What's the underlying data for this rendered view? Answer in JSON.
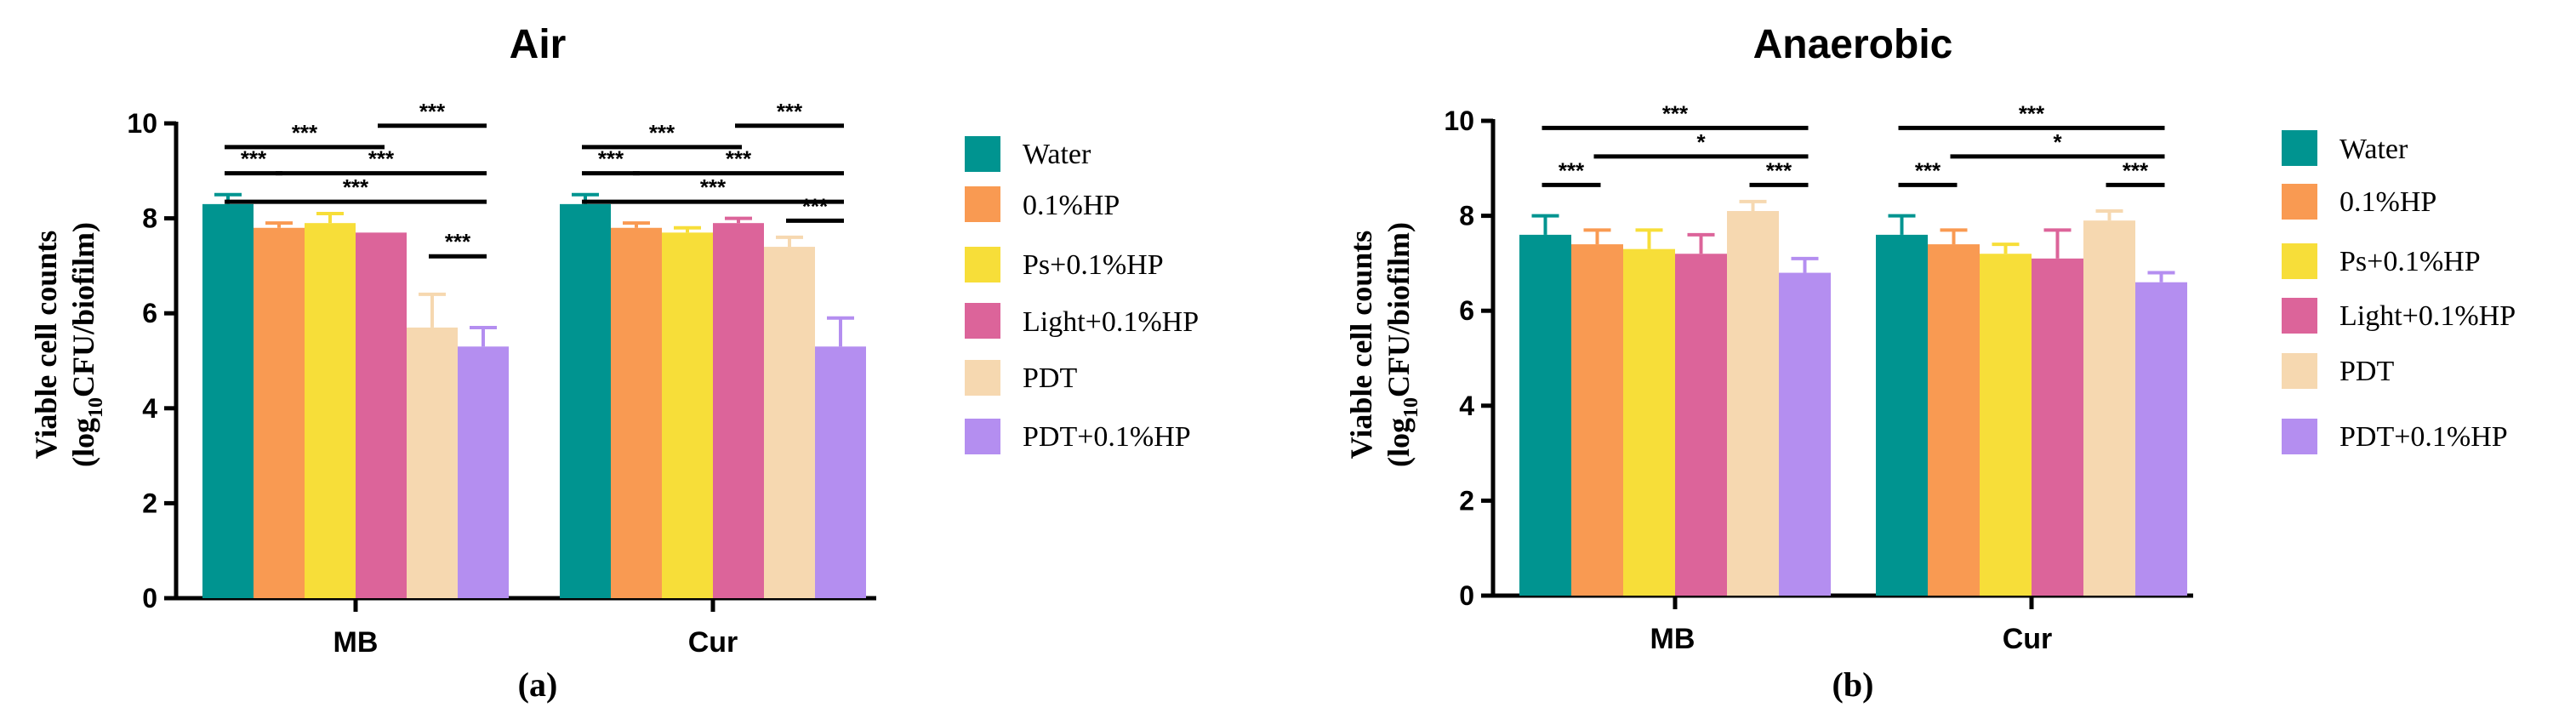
{
  "colors": {
    "Water": "#009490",
    "0.1%HP": "#f99a52",
    "Ps+0.1%HP": "#f7de39",
    "Light+0.1%HP": "#dc649a",
    "PDT": "#f6d8b0",
    "PDT+0.1%HP": "#b48ef0",
    "axis": "#000000"
  },
  "chart_data": [
    {
      "type": "bar",
      "title": "Air",
      "panel_label": "(a)",
      "ylabel_line1": "Viable cell counts",
      "ylabel_prefix": "(log",
      "ylabel_sub": "10",
      "ylabel_suffix": "CFU/biofilm)",
      "ylim": [
        0,
        10
      ],
      "yticks": [
        "0",
        "2",
        "4",
        "6",
        "8",
        "10"
      ],
      "categories": [
        "MB",
        "Cur"
      ],
      "series": [
        {
          "name": "Water",
          "values": [
            8.3,
            8.3
          ],
          "errors": [
            0.2,
            0.2
          ]
        },
        {
          "name": "0.1%HP",
          "values": [
            7.8,
            7.8
          ],
          "errors": [
            0.1,
            0.1
          ]
        },
        {
          "name": "Ps+0.1%HP",
          "values": [
            7.9,
            7.7
          ],
          "errors": [
            0.2,
            0.1
          ]
        },
        {
          "name": "Light+0.1%HP",
          "values": [
            7.7,
            7.9
          ],
          "errors": [
            0.0,
            0.1
          ]
        },
        {
          "name": "PDT",
          "values": [
            5.7,
            7.4
          ],
          "errors": [
            0.7,
            0.2
          ]
        },
        {
          "name": "PDT+0.1%HP",
          "values": [
            5.3,
            5.3
          ],
          "errors": [
            0.4,
            0.6
          ]
        }
      ],
      "significance": [
        {
          "category": 0,
          "from": 0,
          "to": 1,
          "label": "***",
          "level": 8.95
        },
        {
          "category": 0,
          "from": 0,
          "to": 3,
          "label": "***",
          "level": 9.5
        },
        {
          "category": 0,
          "from": 0,
          "to": 5,
          "label": "***",
          "level": 8.35
        },
        {
          "category": 0,
          "from": 1,
          "to": 5,
          "label": "***",
          "level": 8.95
        },
        {
          "category": 0,
          "from": 3,
          "to": 5,
          "label": "***",
          "level": 9.95
        },
        {
          "category": 0,
          "from": 4,
          "to": 5,
          "label": "***",
          "level": 7.2
        },
        {
          "category": 1,
          "from": 0,
          "to": 1,
          "label": "***",
          "level": 8.95
        },
        {
          "category": 1,
          "from": 0,
          "to": 3,
          "label": "***",
          "level": 9.5
        },
        {
          "category": 1,
          "from": 0,
          "to": 5,
          "label": "***",
          "level": 8.35
        },
        {
          "category": 1,
          "from": 1,
          "to": 5,
          "label": "***",
          "level": 8.95
        },
        {
          "category": 1,
          "from": 3,
          "to": 5,
          "label": "***",
          "level": 9.95
        },
        {
          "category": 1,
          "from": 4,
          "to": 5,
          "label": "***",
          "level": 7.95
        }
      ],
      "legend": [
        "Water",
        "0.1%HP",
        "Ps+0.1%HP",
        "Light+0.1%HP",
        "PDT",
        "PDT+0.1%HP"
      ]
    },
    {
      "type": "bar",
      "title": "Anaerobic",
      "panel_label": "(b)",
      "ylabel_line1": "Viable cell counts",
      "ylabel_prefix": "(log",
      "ylabel_sub": "10",
      "ylabel_suffix": "CFU/biofilm)",
      "ylim": [
        0,
        10
      ],
      "yticks": [
        "0",
        "2",
        "4",
        "6",
        "8",
        "10"
      ],
      "categories": [
        "MB",
        "Cur"
      ],
      "series": [
        {
          "name": "Water",
          "values": [
            7.6,
            7.6
          ],
          "errors": [
            0.4,
            0.4
          ]
        },
        {
          "name": "0.1%HP",
          "values": [
            7.4,
            7.4
          ],
          "errors": [
            0.3,
            0.3
          ]
        },
        {
          "name": "Ps+0.1%HP",
          "values": [
            7.3,
            7.2
          ],
          "errors": [
            0.4,
            0.2
          ]
        },
        {
          "name": "Light+0.1%HP",
          "values": [
            7.2,
            7.1
          ],
          "errors": [
            0.4,
            0.6
          ]
        },
        {
          "name": "PDT",
          "values": [
            8.1,
            7.9
          ],
          "errors": [
            0.2,
            0.2
          ]
        },
        {
          "name": "PDT+0.1%HP",
          "values": [
            6.8,
            6.6
          ],
          "errors": [
            0.3,
            0.2
          ]
        }
      ],
      "significance": [
        {
          "category": 0,
          "from": 0,
          "to": 5,
          "label": "***",
          "level": 9.85
        },
        {
          "category": 0,
          "from": 1,
          "to": 5,
          "label": "*",
          "level": 9.25
        },
        {
          "category": 0,
          "from": 0,
          "to": 1,
          "label": "***",
          "level": 8.65
        },
        {
          "category": 0,
          "from": 4,
          "to": 5,
          "label": "***",
          "level": 8.65
        },
        {
          "category": 1,
          "from": 0,
          "to": 5,
          "label": "***",
          "level": 9.85
        },
        {
          "category": 1,
          "from": 1,
          "to": 5,
          "label": "*",
          "level": 9.25
        },
        {
          "category": 1,
          "from": 0,
          "to": 1,
          "label": "***",
          "level": 8.65
        },
        {
          "category": 1,
          "from": 4,
          "to": 5,
          "label": "***",
          "level": 8.65
        }
      ],
      "legend": [
        "Water",
        "0.1%HP",
        "Ps+0.1%HP",
        "Light+0.1%HP",
        "PDT",
        "PDT+0.1%HP"
      ]
    }
  ]
}
